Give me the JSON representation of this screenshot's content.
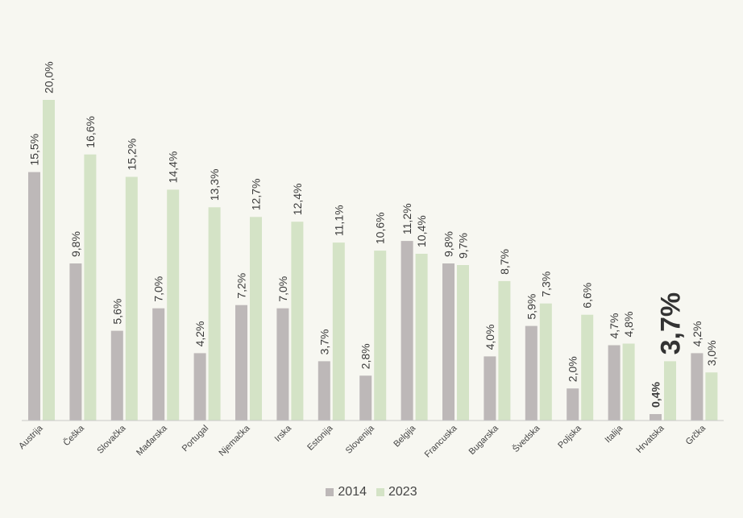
{
  "chart_data": {
    "type": "bar",
    "categories": [
      "Austrija",
      "Češka",
      "Slovačka",
      "Mađarska",
      "Portugal",
      "Njemačka",
      "Irska",
      "Estonija",
      "Slovenija",
      "Belgija",
      "Francuska",
      "Bugarska",
      "Švedska",
      "Poljska",
      "Italija",
      "Hrvatska",
      "Grčka"
    ],
    "series": [
      {
        "name": "2014",
        "color": "#bdb8b8",
        "values": [
          15.5,
          9.8,
          5.6,
          7.0,
          4.2,
          7.2,
          7.0,
          3.7,
          2.8,
          11.2,
          9.8,
          4.0,
          5.9,
          2.0,
          4.7,
          0.4,
          4.2
        ],
        "labels": [
          "15,5%",
          "9,8%",
          "5,6%",
          "7,0%",
          "4,2%",
          "7,2%",
          "7,0%",
          "3,7%",
          "2,8%",
          "11,2%",
          "9,8%",
          "4,0%",
          "5,9%",
          "2,0%",
          "4,7%",
          "0,4%",
          "4,2%"
        ]
      },
      {
        "name": "2023",
        "color": "#d4e3c6",
        "values": [
          20.0,
          16.6,
          15.2,
          14.4,
          13.3,
          12.7,
          12.4,
          11.1,
          10.6,
          10.4,
          9.7,
          8.7,
          7.3,
          6.6,
          4.8,
          3.7,
          3.0
        ],
        "labels": [
          "20,0%",
          "16,6%",
          "15,2%",
          "14,4%",
          "13,3%",
          "12,7%",
          "12,4%",
          "11,1%",
          "10,6%",
          "10,4%",
          "9,7%",
          "8,7%",
          "7,3%",
          "6,6%",
          "4,8%",
          "3,7%",
          "3,0%"
        ]
      }
    ],
    "highlight": {
      "category": "Hrvatska"
    },
    "ylim": [
      0,
      20
    ],
    "grid": false,
    "legend": "bottom",
    "xaxis_color": "#c8c8c8"
  },
  "legend": {
    "items": [
      {
        "label": "2014",
        "color": "#bdb8b8"
      },
      {
        "label": "2023",
        "color": "#d4e3c6"
      }
    ]
  }
}
